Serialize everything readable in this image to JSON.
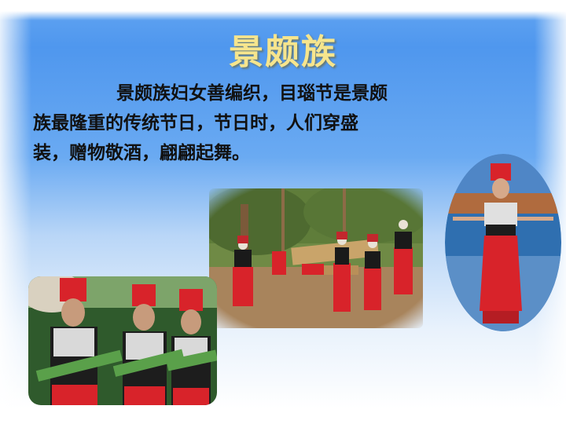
{
  "slide": {
    "title": "景颇族",
    "body_line1": "景颇族妇女善编织，目瑙节是景颇",
    "body_line2": "族最隆重的传统节日，节日时，人们穿盛",
    "body_line3": "装，赠物敬酒，翩翩起舞。"
  },
  "colors": {
    "title": "#f6e58d",
    "background_top": "#4f97ee",
    "background_bottom": "#ffffff",
    "costume_red": "#d8232a"
  },
  "images": {
    "dance_photo": "photo-festival-dance",
    "women_photo": "photo-women-in-costume",
    "dancer_photo": "photo-solo-dancer"
  }
}
